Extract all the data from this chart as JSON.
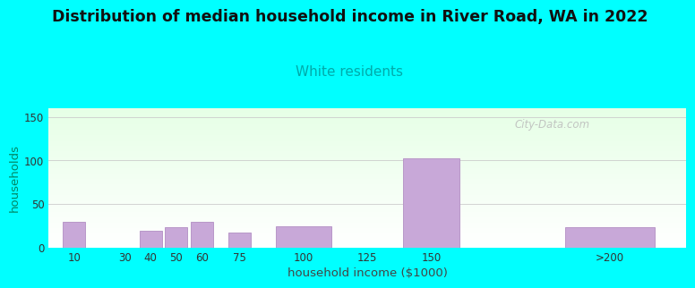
{
  "title": "Distribution of median household income in River Road, WA in 2022",
  "subtitle": "White residents",
  "xlabel": "household income ($1000)",
  "ylabel": "households",
  "background_color": "#00FFFF",
  "bar_color": "#c8a8d8",
  "bar_edge_color": "#b898c8",
  "title_fontsize": 12.5,
  "subtitle_fontsize": 11,
  "subtitle_color": "#00AAAA",
  "ylabel_color": "#008866",
  "xlabel_color": "#444444",
  "watermark": "City-Data.com",
  "ylim": [
    0,
    160
  ],
  "yticks": [
    0,
    50,
    100,
    150
  ],
  "bar_heights": [
    30,
    0,
    19,
    24,
    30,
    17,
    25,
    0,
    103,
    24
  ],
  "bar_centers": [
    10,
    20,
    40,
    50,
    60,
    75,
    100,
    125,
    150,
    220
  ],
  "bar_widths_data": [
    10,
    10,
    10,
    10,
    10,
    10,
    25,
    25,
    25,
    40
  ],
  "xtick_positions": [
    10,
    30,
    40,
    50,
    60,
    75,
    100,
    125,
    150,
    220
  ],
  "xtick_labels": [
    "10",
    "30",
    "40",
    "50",
    "60",
    "75",
    "100",
    "125",
    "150",
    ">200"
  ],
  "xlim": [
    0,
    250
  ]
}
